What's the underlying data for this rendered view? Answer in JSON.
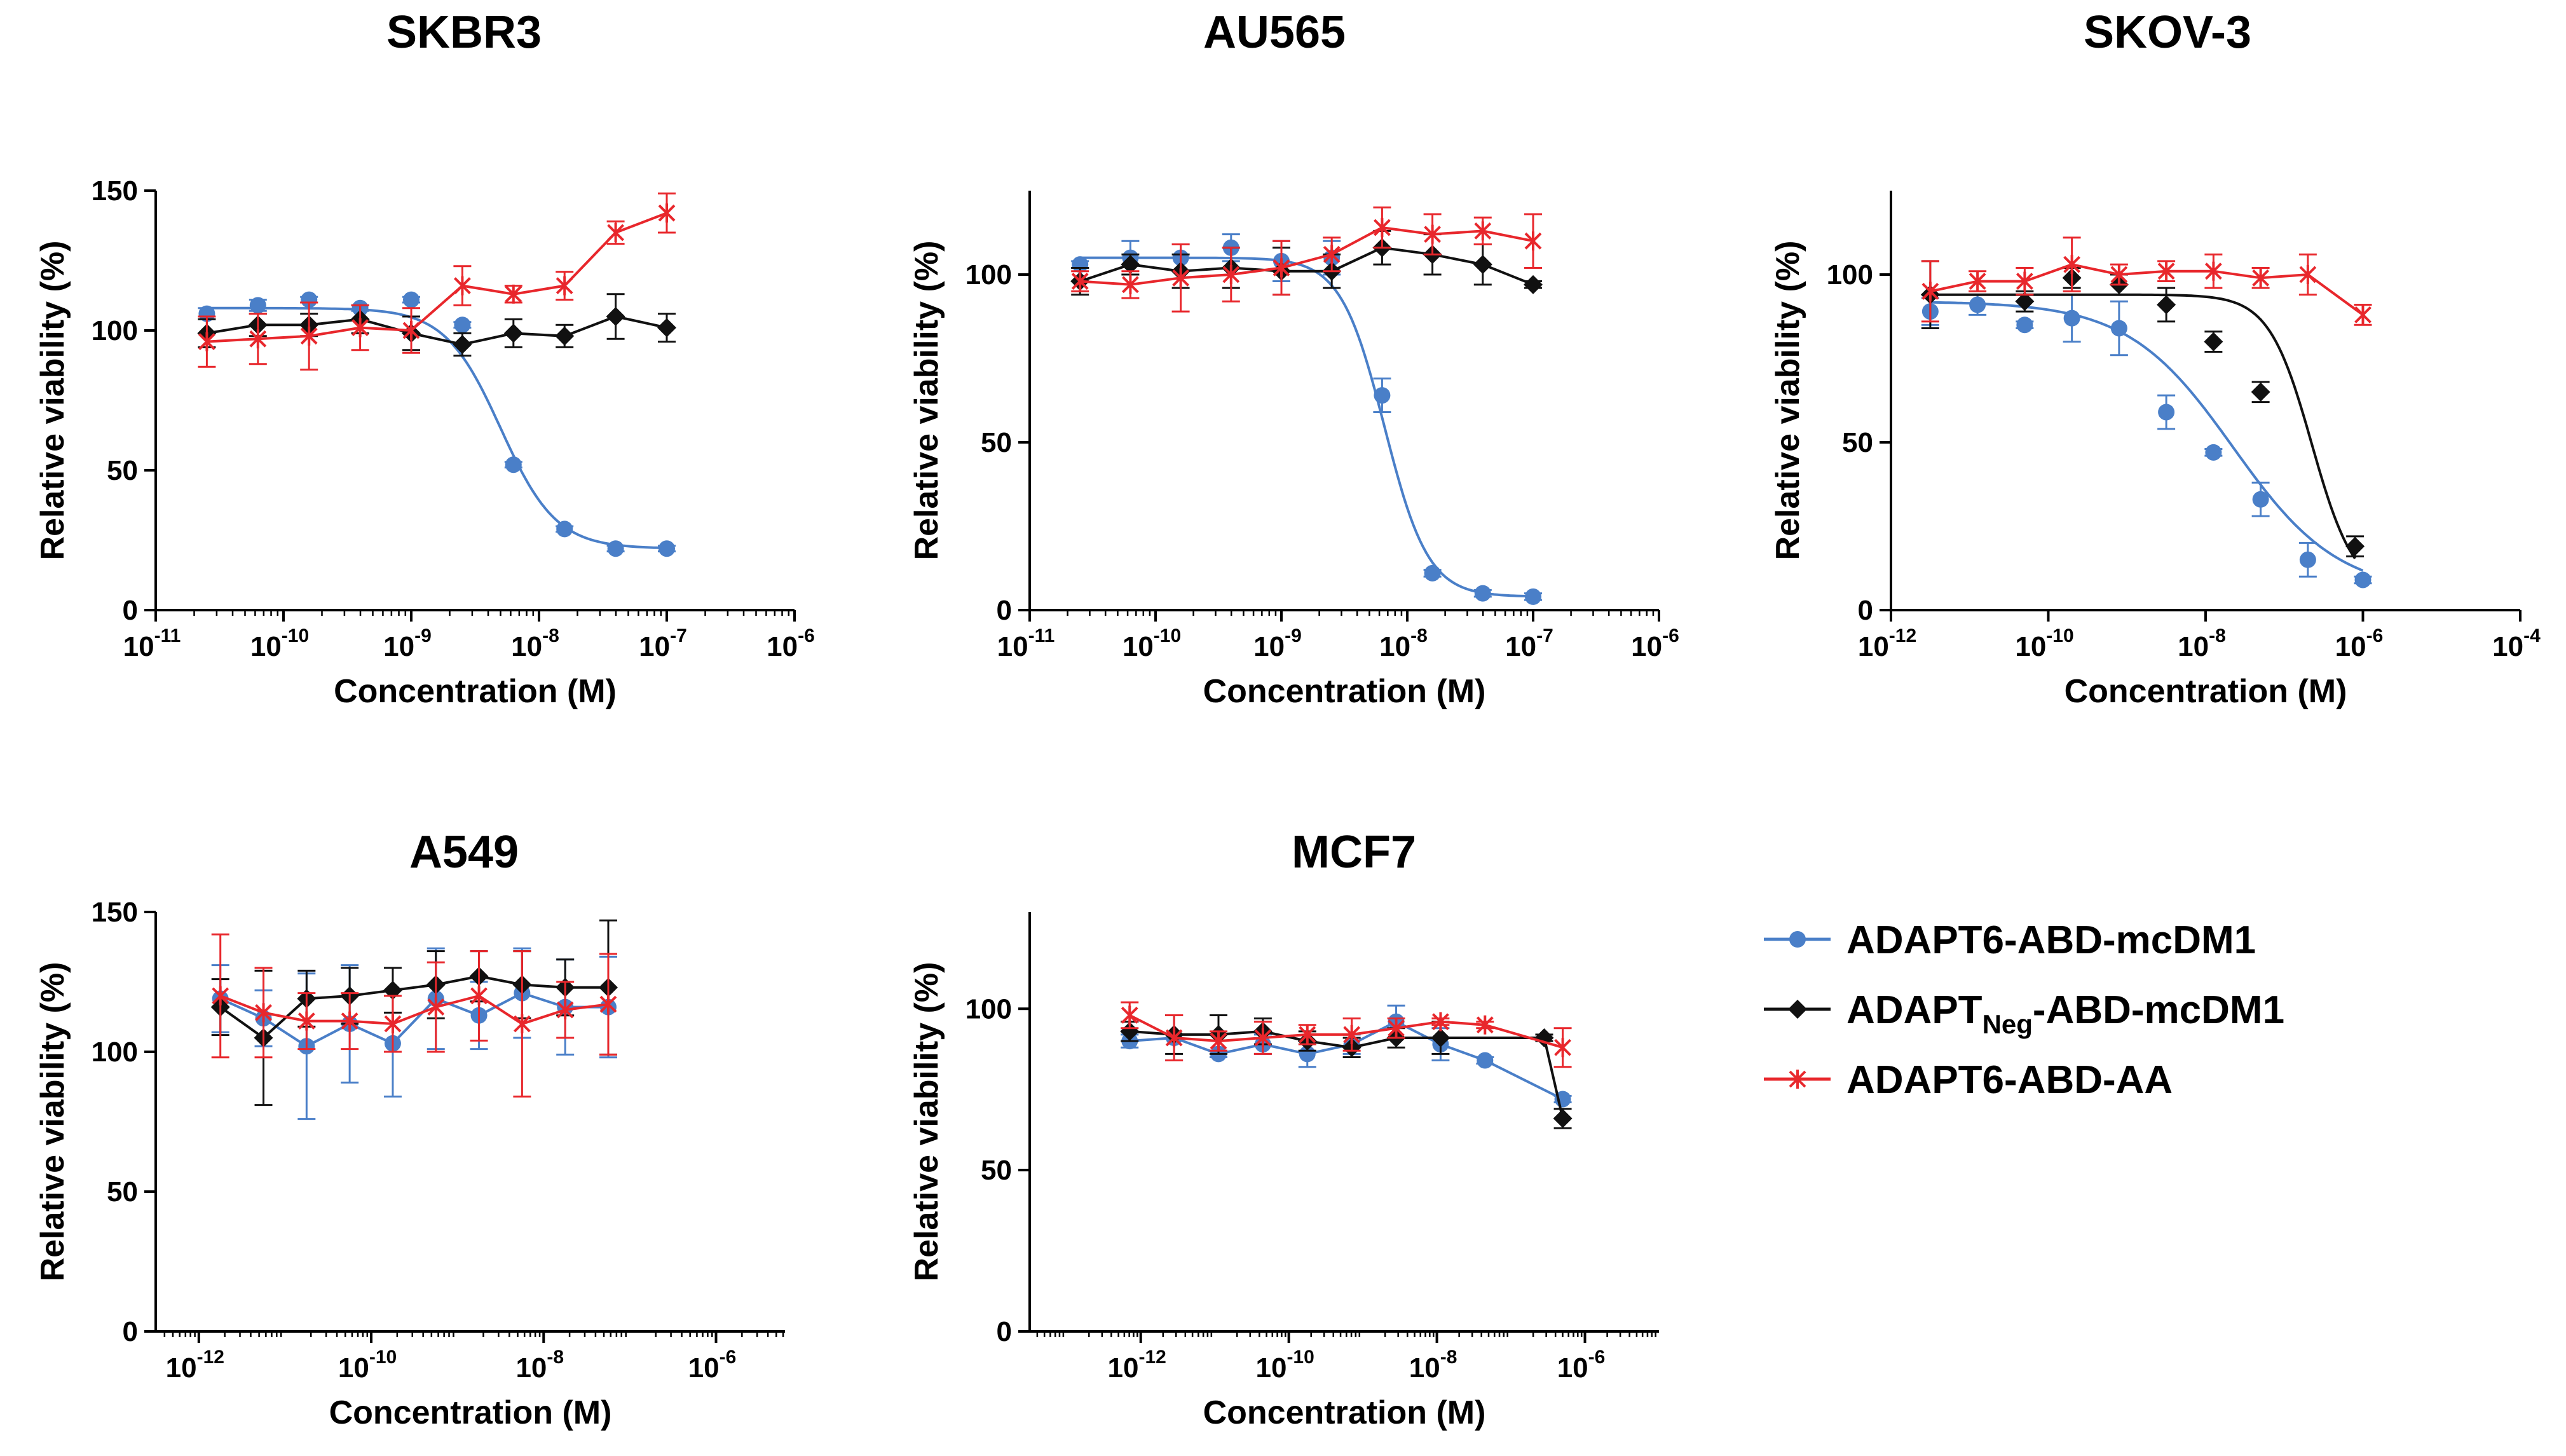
{
  "colors": {
    "blue": "#4a7fc8",
    "black": "#111111",
    "red": "#e8272c"
  },
  "legend": [
    {
      "key": "adapt6_mcdm1",
      "label": "ADAPT6-ABD-mcDM1",
      "label_main": "ADAPT6-ABD-mcDM1",
      "label_sub": "",
      "label_tail": "",
      "color": "#4a7fc8",
      "marker": "circle"
    },
    {
      "key": "neg_mcdm1",
      "label": "ADAPTNeg-ABD-mcDM1",
      "label_main": "ADAPT",
      "label_sub": "Neg",
      "label_tail": "-ABD-mcDM1",
      "color": "#111111",
      "marker": "diamond"
    },
    {
      "key": "adapt6_aa",
      "label": "ADAPT6-ABD-AA",
      "label_main": "ADAPT6-ABD-AA",
      "label_sub": "",
      "label_tail": "",
      "color": "#e8272c",
      "marker": "star"
    }
  ],
  "chart_data": [
    {
      "type": "line",
      "title": "SKBR3",
      "xlabel": "Concentration (M)",
      "ylabel": "Relative viability (%)",
      "xscale": "log",
      "xlim_exp": [
        -11,
        -6
      ],
      "xtick_exps": [
        -11,
        -10,
        -9,
        -8,
        -7,
        -6
      ],
      "xtick_minor": true,
      "ylim": [
        0,
        150
      ],
      "yticks": [
        0,
        50,
        100,
        150
      ],
      "series": [
        {
          "name": "ADAPT6-ABD-mcDM1",
          "marker": "circle",
          "x_exp": [
            -10.6,
            -10.2,
            -9.8,
            -9.4,
            -9.0,
            -8.6,
            -8.2,
            -7.8,
            -7.4,
            -7.0
          ],
          "y": [
            106,
            109,
            111,
            108,
            111,
            102,
            52,
            29,
            22,
            22
          ],
          "err": [
            2,
            2,
            1,
            1,
            1,
            1,
            1,
            1,
            1,
            1
          ],
          "fit": {
            "top": 108,
            "bottom": 22,
            "logEC50": -8.3,
            "hill": 2.0
          }
        },
        {
          "name": "ADAPTNeg-ABD-mcDM1",
          "marker": "diamond",
          "x_exp": [
            -10.6,
            -10.2,
            -9.8,
            -9.4,
            -9.0,
            -8.6,
            -8.2,
            -7.8,
            -7.4,
            -7.0
          ],
          "y": [
            99,
            102,
            102,
            104,
            99,
            95,
            99,
            98,
            105,
            101
          ],
          "err": [
            5,
            4,
            4,
            5,
            6,
            4,
            5,
            4,
            8,
            5
          ]
        },
        {
          "name": "ADAPT6-ABD-AA",
          "marker": "star",
          "x_exp": [
            -10.6,
            -10.2,
            -9.8,
            -9.4,
            -9.0,
            -8.6,
            -8.2,
            -7.8,
            -7.4,
            -7.0
          ],
          "y": [
            96,
            97,
            98,
            101,
            100,
            116,
            113,
            116,
            135,
            142
          ],
          "err": [
            9,
            9,
            12,
            8,
            8,
            7,
            3,
            5,
            4,
            7
          ]
        }
      ]
    },
    {
      "type": "line",
      "title": "AU565",
      "xlabel": "Concentration (M)",
      "ylabel": "Relative viability (%)",
      "xscale": "log",
      "xlim_exp": [
        -11,
        -6
      ],
      "xtick_exps": [
        -11,
        -10,
        -9,
        -8,
        -7,
        -6
      ],
      "xtick_minor": true,
      "ylim": [
        0,
        125
      ],
      "yticks": [
        0,
        50,
        100
      ],
      "series": [
        {
          "name": "ADAPT6-ABD-mcDM1",
          "marker": "circle",
          "x_exp": [
            -10.6,
            -10.2,
            -9.8,
            -9.4,
            -9.0,
            -8.6,
            -8.2,
            -7.8,
            -7.4,
            -7.0
          ],
          "y": [
            103,
            105,
            105,
            108,
            104,
            105,
            64,
            11,
            5,
            4
          ],
          "err": [
            1,
            5,
            4,
            4,
            6,
            5,
            5,
            1,
            1,
            1
          ],
          "fit": {
            "top": 105,
            "bottom": 4,
            "logEC50": -8.18,
            "hill": 2.5
          }
        },
        {
          "name": "ADAPTNeg-ABD-mcDM1",
          "marker": "diamond",
          "x_exp": [
            -10.6,
            -10.2,
            -9.8,
            -9.4,
            -9.0,
            -8.6,
            -8.2,
            -7.8,
            -7.4,
            -7.0
          ],
          "y": [
            98,
            103,
            101,
            102,
            101,
            101,
            108,
            106,
            103,
            97
          ],
          "err": [
            4,
            3,
            5,
            6,
            7,
            5,
            5,
            6,
            6,
            1
          ]
        },
        {
          "name": "ADAPT6-ABD-AA",
          "marker": "star",
          "x_exp": [
            -10.6,
            -10.2,
            -9.8,
            -9.4,
            -9.0,
            -8.6,
            -8.2,
            -7.8,
            -7.4,
            -7.0
          ],
          "y": [
            98,
            97,
            99,
            100,
            102,
            106,
            114,
            112,
            113,
            110
          ],
          "err": [
            3,
            4,
            10,
            8,
            8,
            5,
            6,
            6,
            4,
            8
          ]
        }
      ]
    },
    {
      "type": "line",
      "title": "SKOV-3",
      "xlabel": "Concentration (M)",
      "ylabel": "Relative viability (%)",
      "xscale": "log",
      "xlim_exp": [
        -12,
        -4
      ],
      "xtick_exps": [
        -12,
        -10,
        -8,
        -6,
        -4
      ],
      "xtick_minor": false,
      "ylim": [
        0,
        125
      ],
      "yticks": [
        0,
        50,
        100
      ],
      "series": [
        {
          "name": "ADAPT6-ABD-mcDM1",
          "marker": "circle",
          "x_exp": [
            -11.5,
            -10.9,
            -10.3,
            -9.7,
            -9.1,
            -8.5,
            -7.9,
            -7.3,
            -6.7,
            -6.0
          ],
          "y": [
            89,
            91,
            85,
            87,
            84,
            59,
            47,
            33,
            15,
            9
          ],
          "err": [
            4,
            3,
            1,
            7,
            8,
            5,
            1,
            5,
            5,
            1
          ],
          "fit": {
            "top": 92,
            "bottom": 5,
            "logEC50": -7.65,
            "hill": 0.65
          }
        },
        {
          "name": "ADAPTNeg-ABD-mcDM1",
          "marker": "diamond",
          "x_exp": [
            -11.5,
            -10.3,
            -9.7,
            -9.1,
            -8.5,
            -7.9,
            -7.3,
            -6.1
          ],
          "y": [
            94,
            92,
            99,
            97,
            91,
            80,
            65,
            19
          ],
          "err": [
            10,
            3,
            3,
            3,
            5,
            3,
            3,
            3
          ],
          "fit": {
            "top": 94,
            "bottom": 5,
            "logEC50": -6.65,
            "hill": 1.6
          }
        },
        {
          "name": "ADAPT6-ABD-AA",
          "marker": "star",
          "x_exp": [
            -11.5,
            -10.9,
            -10.3,
            -9.7,
            -9.1,
            -8.5,
            -7.9,
            -7.3,
            -6.7,
            -6.0
          ],
          "y": [
            95,
            98,
            98,
            103,
            100,
            101,
            101,
            99,
            100,
            88
          ],
          "err": [
            9,
            3,
            4,
            8,
            3,
            3,
            5,
            3,
            6,
            3
          ]
        }
      ]
    },
    {
      "type": "line",
      "title": "A549",
      "xlabel": "Concentration (M)",
      "ylabel": "Relative viability (%)",
      "xscale": "log",
      "xlim_exp": [
        -12.5,
        -5.2
      ],
      "xtick_exps": [
        -12,
        -10,
        -8,
        -6
      ],
      "xtick_minor": true,
      "ylim": [
        0,
        150
      ],
      "yticks": [
        0,
        50,
        100,
        150
      ],
      "series": [
        {
          "name": "ADAPT6-ABD-mcDM1",
          "marker": "circle",
          "x_exp": [
            -11.75,
            -11.25,
            -10.75,
            -10.25,
            -9.75,
            -9.25,
            -8.75,
            -8.25,
            -7.75,
            -7.25
          ],
          "y": [
            119,
            112,
            102,
            110,
            103,
            119,
            113,
            121,
            116,
            116
          ],
          "err": [
            12,
            10,
            26,
            21,
            19,
            18,
            12,
            16,
            17,
            18
          ]
        },
        {
          "name": "ADAPTNeg-ABD-mcDM1",
          "marker": "diamond",
          "x_exp": [
            -11.75,
            -11.25,
            -10.75,
            -10.25,
            -9.75,
            -9.25,
            -8.75,
            -8.25,
            -7.75,
            -7.25
          ],
          "y": [
            116,
            105,
            119,
            120,
            122,
            124,
            127,
            124,
            123,
            123
          ],
          "err": [
            10,
            24,
            10,
            10,
            8,
            12,
            9,
            12,
            10,
            24
          ]
        },
        {
          "name": "ADAPT6-ABD-AA",
          "marker": "star",
          "x_exp": [
            -11.75,
            -11.25,
            -10.75,
            -10.25,
            -9.75,
            -9.25,
            -8.75,
            -8.25,
            -7.75,
            -7.25
          ],
          "y": [
            120,
            114,
            111,
            111,
            110,
            116,
            120,
            110,
            115,
            117
          ],
          "err": [
            22,
            16,
            10,
            10,
            10,
            16,
            16,
            26,
            10,
            18
          ]
        }
      ]
    },
    {
      "type": "line",
      "title": "MCF7",
      "xlabel": "Concentration (M)",
      "ylabel": "Relative viability (%)",
      "xscale": "log",
      "xlim_exp": [
        -13.5,
        -5.0
      ],
      "xtick_exps": [
        -12,
        -10,
        -8,
        -6
      ],
      "xtick_minor": true,
      "ylim": [
        0,
        130
      ],
      "yticks": [
        0,
        50,
        100
      ],
      "series": [
        {
          "name": "ADAPT6-ABD-mcDM1",
          "marker": "circle",
          "x_exp": [
            -12.15,
            -11.55,
            -10.95,
            -10.35,
            -9.75,
            -9.15,
            -8.55,
            -7.95,
            -7.35,
            -6.3
          ],
          "y": [
            90,
            91,
            86,
            89,
            86,
            89,
            96,
            89,
            84,
            72
          ],
          "err": [
            2,
            7,
            1,
            3,
            4,
            3,
            5,
            5,
            1,
            1
          ]
        },
        {
          "name": "ADAPTNeg-ABD-mcDM1",
          "marker": "diamond",
          "x_exp": [
            -12.15,
            -11.55,
            -10.95,
            -10.35,
            -9.75,
            -9.15,
            -8.55,
            -7.95,
            -6.55,
            -6.3
          ],
          "y": [
            93,
            92,
            92,
            93,
            90,
            88,
            91,
            91,
            91,
            66
          ],
          "err": [
            3,
            6,
            6,
            4,
            3,
            3,
            3,
            5,
            1,
            3
          ]
        },
        {
          "name": "ADAPT6-ABD-AA",
          "marker": "star",
          "x_exp": [
            -12.15,
            -11.55,
            -10.95,
            -10.35,
            -9.75,
            -9.15,
            -8.55,
            -7.95,
            -7.35,
            -6.3
          ],
          "y": [
            98,
            91,
            90,
            91,
            92,
            92,
            94,
            96,
            95,
            88
          ],
          "err": [
            4,
            7,
            3,
            5,
            3,
            5,
            3,
            1,
            1,
            6
          ]
        }
      ]
    }
  ]
}
